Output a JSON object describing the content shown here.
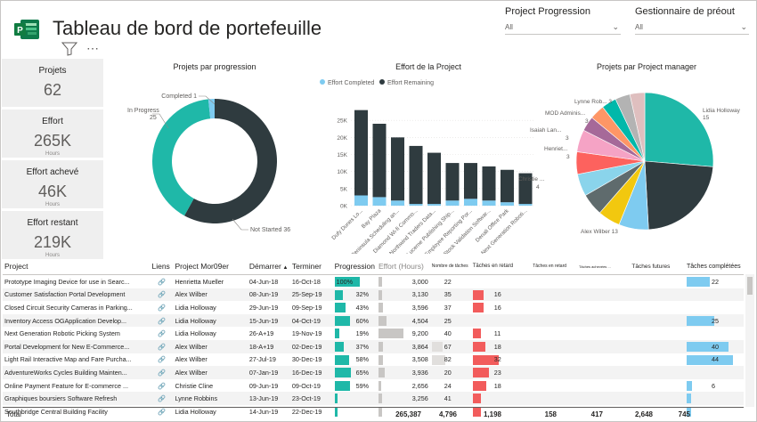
{
  "header": {
    "title": "Tableau de bord de portefeuille",
    "more_label": "⋯"
  },
  "slicers": [
    {
      "label": "Project Progression",
      "value": "All"
    },
    {
      "label": "Gestionnaire de préout",
      "value": "All"
    }
  ],
  "kpis": [
    {
      "label": "Projets",
      "value": "62",
      "sub": ""
    },
    {
      "label": "Effort",
      "value": "265K",
      "sub": "Hours"
    },
    {
      "label": "Effort achevé",
      "value": "46K",
      "sub": "Hours"
    },
    {
      "label": "Effort restant",
      "value": "219K",
      "sub": "Hours"
    }
  ],
  "colors": {
    "teal": "#1fb8a8",
    "dark": "#2f3b3f",
    "light_blue": "#7ecbf0",
    "red": "#f25c5c",
    "kpi_bg": "#efefef"
  },
  "chart_data": [
    {
      "type": "pie",
      "title": "Projets par progression",
      "donut": true,
      "slices": [
        {
          "label": "Not Started",
          "value": 36,
          "color": "#2f3b3f"
        },
        {
          "label": "In Progress",
          "value": 25,
          "color": "#1fb8a8"
        },
        {
          "label": "Completed",
          "value": 1,
          "color": "#7ecbf0"
        }
      ]
    },
    {
      "type": "bar",
      "stacked": true,
      "title": "Effort de la Project",
      "legend": [
        "Effort Completed",
        "Effort Remaining"
      ],
      "legend_position": "top-left",
      "categories": [
        "Dufy Dunes Lo...",
        "Bay Plaza",
        "Peninsula Scheduling an...",
        "Diamond Wi-fi Commo...",
        "Northwind Traders Data...",
        "Lucerne Publishing Ship...",
        "Employee Reporting Por...",
        "Stock Validation Softwar...",
        "Denali Office Park",
        "Next Generation Roboti..."
      ],
      "series": [
        {
          "name": "Effort Completed",
          "color": "#7ecbf0",
          "values": [
            3,
            2.5,
            1.5,
            0.5,
            0.5,
            1.5,
            2,
            1.5,
            1,
            0.5
          ]
        },
        {
          "name": "Effort Remaining",
          "color": "#2f3b3f",
          "values": [
            25,
            21.5,
            18.5,
            17,
            15,
            11,
            10.5,
            10,
            9.5,
            9
          ]
        }
      ],
      "yticks": [
        "0K",
        "5K",
        "10K",
        "15K",
        "20K",
        "25K"
      ],
      "ylim": [
        0,
        30
      ]
    },
    {
      "type": "pie",
      "title": "Projets par Project manager",
      "slices": [
        {
          "label": "Lidia Holloway",
          "value": 15,
          "color": "#1fb8a8"
        },
        {
          "label": "Alex Wilber",
          "value": 13,
          "color": "#2f3b3f"
        },
        {
          "label": "Christie Cline",
          "value": 4,
          "color": "#7ecbf0"
        },
        {
          "label": "Henrietta Mueller",
          "value": 3,
          "color": "#f2c80f"
        },
        {
          "label": "Isaiah Langer",
          "value": 3,
          "color": "#5f6b6d"
        },
        {
          "label": "MOD Administrator",
          "value": 3,
          "color": "#8ad4eb"
        },
        {
          "label": "Lynne Robbins",
          "value": 3,
          "color": "#fd625e"
        },
        {
          "label": "Autres 1",
          "value": 3,
          "color": "#f5a3c5"
        },
        {
          "label": "Autres 2",
          "value": 2,
          "color": "#a66999"
        },
        {
          "label": "Autres 3",
          "value": 2,
          "color": "#fe9666"
        },
        {
          "label": "Autres 4",
          "value": 2,
          "color": "#01b8aa"
        },
        {
          "label": "Autres 5",
          "value": 2,
          "color": "#b3b3b3"
        },
        {
          "label": "Autres 6",
          "value": 2,
          "color": "#dfbfbf"
        }
      ],
      "labels": [
        {
          "text": "Lidia Holloway",
          "sub": "15"
        },
        {
          "text": "Alex Wilber 13",
          "sub": ""
        },
        {
          "text": "Christie ...",
          "sub": "4"
        },
        {
          "text": "Henriet...",
          "sub": "3"
        },
        {
          "text": "Isaiah Lan...",
          "sub": "3"
        },
        {
          "text": "MOD Adminis...",
          "sub": "3"
        },
        {
          "text": "Lynne Rob... 3",
          "sub": ""
        }
      ]
    }
  ],
  "donut_labels": {
    "completed": "Completed 1",
    "in_progress": "In Progress",
    "in_progress_val": "25",
    "not_started": "Not Started 36"
  },
  "table": {
    "columns": [
      "Project",
      "Liens",
      "Project Mor09er",
      "Démarrer",
      "Terminer",
      "Progression",
      "Effort (Hours)",
      "Nombre de tâches",
      "Tâches en retard",
      "Tâches en retard",
      "Tâches achevées ...",
      "Tâches futures",
      "Tâches complétées"
    ],
    "rows": [
      {
        "project": "Prototype Imaging Device for use in Searc...",
        "manager": "Henrietta Mueller",
        "start": "04-Jun-18",
        "end": "16-Oct-18",
        "progress_label": "100%",
        "progress": 1.0,
        "effort": "3,000",
        "effort_v": 0.1,
        "tasks": "22",
        "tasks_v": 0.0,
        "late": "",
        "late_v": 0,
        "completed": "22",
        "completed_v": 0.5
      },
      {
        "project": "Customer Satisfaction Portal Development",
        "manager": "Alex Wilber",
        "start": "08-Jun-19",
        "end": "25-Sep-19",
        "progress_label": "32%",
        "progress": 0.32,
        "effort": "3,130",
        "effort_v": 0.1,
        "tasks": "35",
        "tasks_v": 0.0,
        "late": "16",
        "late_v": 0.4,
        "completed": "",
        "completed_v": 0
      },
      {
        "project": "Closed Circuit Security Cameras in Parking...",
        "manager": "Lidia Holloway",
        "start": "29-Jun-19",
        "end": "09-Sep-19",
        "progress_label": "43%",
        "progress": 0.43,
        "effort": "3,596",
        "effort_v": 0.13,
        "tasks": "37",
        "tasks_v": 0.0,
        "late": "16",
        "late_v": 0.4,
        "completed": "",
        "completed_v": 0
      },
      {
        "project": "Inventory Access OGApplication Develop...",
        "manager": "Lidia Holloway",
        "start": "15-Jun-19",
        "end": "04-Oct-19",
        "progress_label": "60%",
        "progress": 0.6,
        "effort": "4,504",
        "effort_v": 0.22,
        "tasks": "25",
        "tasks_v": 0.0,
        "late": "",
        "late_v": 0,
        "completed": "25",
        "completed_v": 0.6
      },
      {
        "project": "Next Generation Robotic Picking System",
        "manager": "Lidia Holloway",
        "start": "26-A+19",
        "end": "19-Nov-19",
        "progress_label": "19%",
        "progress": 0.19,
        "effort": "9,200",
        "effort_v": 0.7,
        "tasks": "40",
        "tasks_v": 0.0,
        "late": "11",
        "late_v": 0.3,
        "completed": "",
        "completed_v": 0
      },
      {
        "project": "Portal Development for New E-Commerce...",
        "manager": "Alex Wilber",
        "start": "18-A+19",
        "end": "02-Dec-19",
        "progress_label": "37%",
        "progress": 0.37,
        "effort": "3,864",
        "effort_v": 0.13,
        "tasks": "67",
        "tasks_v": 0.4,
        "late": "18",
        "late_v": 0.45,
        "completed": "40",
        "completed_v": 0.9
      },
      {
        "project": "Light Rail Interactive Map and Fare Purcha...",
        "manager": "Alex Wilber",
        "start": "27-Jul-19",
        "end": "30-Dec-19",
        "progress_label": "58%",
        "progress": 0.58,
        "effort": "3,508",
        "effort_v": 0.12,
        "tasks": "82",
        "tasks_v": 0.5,
        "late": "32",
        "late_v": 0.95,
        "completed": "44",
        "completed_v": 1.0
      },
      {
        "project": "AdventureWorks Cycles Building Mainten...",
        "manager": "Alex Wilber",
        "start": "07-Jan-19",
        "end": "16-Dec-19",
        "progress_label": "65%",
        "progress": 0.65,
        "effort": "3,936",
        "effort_v": 0.18,
        "tasks": "20",
        "tasks_v": 0.0,
        "late": "23",
        "late_v": 0.6,
        "completed": "",
        "completed_v": 0
      },
      {
        "project": "Online Payment Feature for E-commerce ...",
        "manager": "Christie Cline",
        "start": "09-Jun-19",
        "end": "09-Oct-19",
        "progress_label": "59%",
        "progress": 0.59,
        "effort": "2,656",
        "effort_v": 0.08,
        "tasks": "24",
        "tasks_v": 0.0,
        "late": "18",
        "late_v": 0.5,
        "completed": "6",
        "completed_v": 0.12
      },
      {
        "project": "Graphiques boursiers Software Refresh",
        "manager": "Lynne Robbins",
        "start": "13-Jun-19",
        "end": "23-Oct-19",
        "progress_label": "",
        "progress": 0.1,
        "effort": "3,256",
        "effort_v": 0.1,
        "tasks": "41",
        "tasks_v": 0.0,
        "late": "",
        "late_v": 0.3,
        "completed": "",
        "completed_v": 0.1
      },
      {
        "project": "Southbridge Central Building Facility",
        "manager": "Lidia Holloway",
        "start": "14-Jun-19",
        "end": "22-Dec-19",
        "progress_label": "",
        "progress": 0.1,
        "effort": "",
        "effort_v": 0.1,
        "tasks": "",
        "tasks_v": 0.0,
        "late": "",
        "late_v": 0.3,
        "completed": "",
        "completed_v": 0.1
      }
    ],
    "totals": {
      "label": "Total",
      "effort": "265,387",
      "tasks": "4,796",
      "late": "1,198",
      "late2": "158",
      "done": "417",
      "future": "2,648",
      "completed": "745"
    }
  }
}
